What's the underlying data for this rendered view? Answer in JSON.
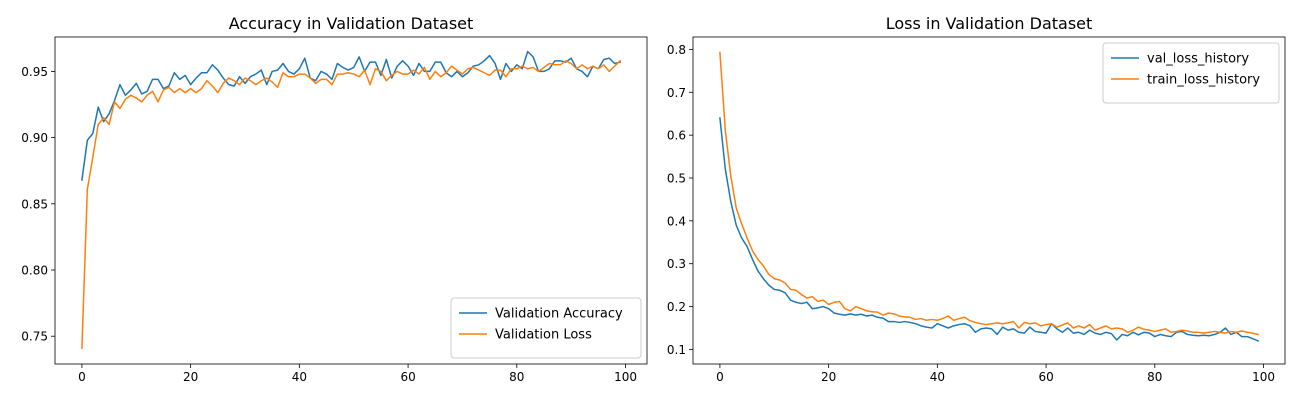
{
  "chart_data": [
    {
      "type": "line",
      "title": "Accuracy in Validation Dataset",
      "xlabel": "",
      "ylabel": "",
      "xlim": [
        -4.95,
        103.95
      ],
      "ylim": [
        0.729,
        0.976
      ],
      "xticks": [
        0,
        20,
        40,
        60,
        80,
        100
      ],
      "yticks": [
        0.75,
        0.8,
        0.85,
        0.9,
        0.95
      ],
      "ytick_labels": [
        "0.75",
        "0.80",
        "0.85",
        "0.90",
        "0.95"
      ],
      "grid": false,
      "legend_position": "lower-right",
      "x": [
        0,
        1,
        2,
        3,
        4,
        5,
        6,
        7,
        8,
        9,
        10,
        11,
        12,
        13,
        14,
        15,
        16,
        17,
        18,
        19,
        20,
        21,
        22,
        23,
        24,
        25,
        26,
        27,
        28,
        29,
        30,
        31,
        32,
        33,
        34,
        35,
        36,
        37,
        38,
        39,
        40,
        41,
        42,
        43,
        44,
        45,
        46,
        47,
        48,
        49,
        50,
        51,
        52,
        53,
        54,
        55,
        56,
        57,
        58,
        59,
        60,
        61,
        62,
        63,
        64,
        65,
        66,
        67,
        68,
        69,
        70,
        71,
        72,
        73,
        74,
        75,
        76,
        77,
        78,
        79,
        80,
        81,
        82,
        83,
        84,
        85,
        86,
        87,
        88,
        89,
        90,
        91,
        92,
        93,
        94,
        95,
        96,
        97,
        98,
        99
      ],
      "series": [
        {
          "name": "Validation Accuracy",
          "color": "#1f77b4",
          "values": [
            0.868,
            0.898,
            0.903,
            0.923,
            0.912,
            0.918,
            0.928,
            0.94,
            0.932,
            0.936,
            0.941,
            0.933,
            0.935,
            0.944,
            0.944,
            0.937,
            0.939,
            0.949,
            0.944,
            0.947,
            0.94,
            0.945,
            0.949,
            0.949,
            0.955,
            0.951,
            0.945,
            0.94,
            0.939,
            0.946,
            0.941,
            0.946,
            0.948,
            0.951,
            0.94,
            0.95,
            0.951,
            0.956,
            0.95,
            0.948,
            0.952,
            0.96,
            0.945,
            0.943,
            0.95,
            0.948,
            0.944,
            0.956,
            0.953,
            0.951,
            0.953,
            0.961,
            0.95,
            0.957,
            0.957,
            0.947,
            0.959,
            0.945,
            0.954,
            0.958,
            0.954,
            0.947,
            0.956,
            0.95,
            0.95,
            0.957,
            0.957,
            0.949,
            0.946,
            0.95,
            0.946,
            0.949,
            0.954,
            0.955,
            0.958,
            0.962,
            0.956,
            0.944,
            0.956,
            0.95,
            0.955,
            0.952,
            0.965,
            0.961,
            0.95,
            0.95,
            0.952,
            0.958,
            0.958,
            0.957,
            0.96,
            0.952,
            0.95,
            0.946,
            0.954,
            0.952,
            0.959,
            0.96,
            0.956,
            0.957
          ]
        },
        {
          "name": "Validation Loss",
          "color": "#ff7f0e",
          "values": [
            0.741,
            0.861,
            0.885,
            0.91,
            0.915,
            0.91,
            0.927,
            0.922,
            0.929,
            0.932,
            0.93,
            0.927,
            0.932,
            0.935,
            0.927,
            0.936,
            0.938,
            0.934,
            0.937,
            0.934,
            0.937,
            0.934,
            0.937,
            0.943,
            0.939,
            0.934,
            0.941,
            0.945,
            0.943,
            0.94,
            0.945,
            0.943,
            0.94,
            0.943,
            0.945,
            0.942,
            0.938,
            0.949,
            0.946,
            0.946,
            0.948,
            0.948,
            0.945,
            0.941,
            0.944,
            0.944,
            0.94,
            0.948,
            0.948,
            0.949,
            0.948,
            0.946,
            0.951,
            0.94,
            0.952,
            0.95,
            0.943,
            0.947,
            0.95,
            0.948,
            0.948,
            0.951,
            0.948,
            0.953,
            0.944,
            0.95,
            0.946,
            0.949,
            0.954,
            0.951,
            0.948,
            0.952,
            0.953,
            0.951,
            0.949,
            0.947,
            0.951,
            0.951,
            0.946,
            0.952,
            0.952,
            0.954,
            0.952,
            0.953,
            0.95,
            0.953,
            0.956,
            0.955,
            0.955,
            0.958,
            0.956,
            0.952,
            0.955,
            0.952,
            0.954,
            0.952,
            0.955,
            0.95,
            0.954,
            0.958
          ]
        }
      ]
    },
    {
      "type": "line",
      "title": "Loss in Validation Dataset",
      "xlabel": "",
      "ylabel": "",
      "xlim": [
        -4.95,
        103.95
      ],
      "ylim": [
        0.066,
        0.829
      ],
      "xticks": [
        0,
        20,
        40,
        60,
        80,
        100
      ],
      "yticks": [
        0.1,
        0.2,
        0.3,
        0.4,
        0.5,
        0.6,
        0.7,
        0.8
      ],
      "ytick_labels": [
        "0.1",
        "0.2",
        "0.3",
        "0.4",
        "0.5",
        "0.6",
        "0.7",
        "0.8"
      ],
      "grid": false,
      "legend_position": "upper-right",
      "x": [
        0,
        1,
        2,
        3,
        4,
        5,
        6,
        7,
        8,
        9,
        10,
        11,
        12,
        13,
        14,
        15,
        16,
        17,
        18,
        19,
        20,
        21,
        22,
        23,
        24,
        25,
        26,
        27,
        28,
        29,
        30,
        31,
        32,
        33,
        34,
        35,
        36,
        37,
        38,
        39,
        40,
        41,
        42,
        43,
        44,
        45,
        46,
        47,
        48,
        49,
        50,
        51,
        52,
        53,
        54,
        55,
        56,
        57,
        58,
        59,
        60,
        61,
        62,
        63,
        64,
        65,
        66,
        67,
        68,
        69,
        70,
        71,
        72,
        73,
        74,
        75,
        76,
        77,
        78,
        79,
        80,
        81,
        82,
        83,
        84,
        85,
        86,
        87,
        88,
        89,
        90,
        91,
        92,
        93,
        94,
        95,
        96,
        97,
        98,
        99
      ],
      "series": [
        {
          "name": "val_loss_history",
          "color": "#1f77b4",
          "values": [
            0.64,
            0.52,
            0.445,
            0.39,
            0.36,
            0.34,
            0.31,
            0.283,
            0.265,
            0.25,
            0.24,
            0.238,
            0.232,
            0.215,
            0.21,
            0.207,
            0.21,
            0.195,
            0.197,
            0.2,
            0.195,
            0.185,
            0.182,
            0.18,
            0.183,
            0.18,
            0.182,
            0.178,
            0.18,
            0.175,
            0.173,
            0.165,
            0.165,
            0.163,
            0.165,
            0.163,
            0.16,
            0.155,
            0.152,
            0.15,
            0.16,
            0.155,
            0.15,
            0.155,
            0.158,
            0.16,
            0.155,
            0.14,
            0.148,
            0.15,
            0.148,
            0.135,
            0.152,
            0.145,
            0.148,
            0.14,
            0.138,
            0.152,
            0.142,
            0.14,
            0.138,
            0.16,
            0.148,
            0.14,
            0.15,
            0.138,
            0.14,
            0.135,
            0.145,
            0.138,
            0.135,
            0.14,
            0.137,
            0.122,
            0.135,
            0.132,
            0.14,
            0.134,
            0.14,
            0.138,
            0.13,
            0.135,
            0.132,
            0.13,
            0.14,
            0.142,
            0.135,
            0.133,
            0.132,
            0.133,
            0.132,
            0.135,
            0.14,
            0.15,
            0.135,
            0.14,
            0.13,
            0.13,
            0.125,
            0.12
          ]
        },
        {
          "name": "train_loss_history",
          "color": "#ff7f0e",
          "values": [
            0.793,
            0.61,
            0.505,
            0.43,
            0.393,
            0.36,
            0.33,
            0.31,
            0.295,
            0.275,
            0.265,
            0.262,
            0.255,
            0.24,
            0.238,
            0.228,
            0.22,
            0.223,
            0.212,
            0.215,
            0.205,
            0.21,
            0.212,
            0.195,
            0.19,
            0.2,
            0.195,
            0.19,
            0.188,
            0.187,
            0.18,
            0.185,
            0.183,
            0.178,
            0.176,
            0.175,
            0.17,
            0.172,
            0.168,
            0.17,
            0.168,
            0.172,
            0.178,
            0.168,
            0.172,
            0.175,
            0.167,
            0.163,
            0.16,
            0.158,
            0.16,
            0.162,
            0.16,
            0.162,
            0.165,
            0.15,
            0.163,
            0.16,
            0.162,
            0.155,
            0.158,
            0.16,
            0.152,
            0.157,
            0.162,
            0.15,
            0.155,
            0.15,
            0.158,
            0.145,
            0.15,
            0.155,
            0.148,
            0.15,
            0.148,
            0.14,
            0.145,
            0.152,
            0.147,
            0.145,
            0.142,
            0.145,
            0.148,
            0.14,
            0.142,
            0.145,
            0.143,
            0.14,
            0.14,
            0.138,
            0.14,
            0.142,
            0.14,
            0.138,
            0.142,
            0.14,
            0.143,
            0.14,
            0.138,
            0.135
          ]
        }
      ]
    }
  ]
}
